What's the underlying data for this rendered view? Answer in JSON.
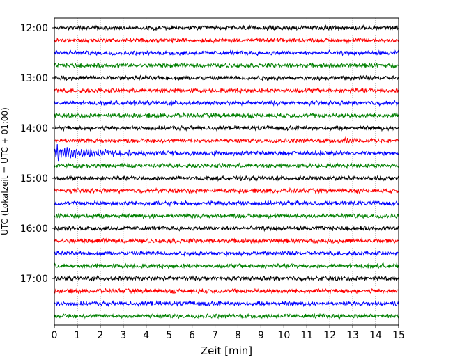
{
  "chart_data": {
    "type": "line",
    "title": "",
    "xlabel": "Zeit  [min]",
    "ylabel": "UTC (Lokalzeit = UTC + 01:00)",
    "xlim": [
      0,
      15
    ],
    "x_ticks": [
      "0",
      "1",
      "2",
      "3",
      "4",
      "5",
      "6",
      "7",
      "8",
      "9",
      "10",
      "11",
      "12",
      "13",
      "14",
      "15"
    ],
    "y_ticks": [
      "12:00",
      "13:00",
      "14:00",
      "15:00",
      "16:00",
      "17:00"
    ],
    "trace_interval_min": 15,
    "trace_colors": [
      "#000000",
      "#ff0000",
      "#0000ff",
      "#008000"
    ],
    "grid": "vertical dotted at each minute",
    "traces": [
      {
        "start": "12:00",
        "color": "#000000"
      },
      {
        "start": "12:15",
        "color": "#ff0000"
      },
      {
        "start": "12:30",
        "color": "#0000ff"
      },
      {
        "start": "12:45",
        "color": "#008000"
      },
      {
        "start": "13:00",
        "color": "#000000"
      },
      {
        "start": "13:15",
        "color": "#ff0000"
      },
      {
        "start": "13:30",
        "color": "#0000ff"
      },
      {
        "start": "13:45",
        "color": "#008000"
      },
      {
        "start": "14:00",
        "color": "#000000"
      },
      {
        "start": "14:15",
        "color": "#ff0000",
        "event": {
          "onset_min": 12.65,
          "peak": 0.7,
          "decay_min": 0.5
        }
      },
      {
        "start": "14:30",
        "color": "#0000ff",
        "event": {
          "onset_min": 0.0,
          "peak": 1.6,
          "decay_min": 1.6
        }
      },
      {
        "start": "14:45",
        "color": "#008000"
      },
      {
        "start": "15:00",
        "color": "#000000"
      },
      {
        "start": "15:15",
        "color": "#ff0000"
      },
      {
        "start": "15:30",
        "color": "#0000ff"
      },
      {
        "start": "15:45",
        "color": "#008000"
      },
      {
        "start": "16:00",
        "color": "#000000"
      },
      {
        "start": "16:15",
        "color": "#ff0000"
      },
      {
        "start": "16:30",
        "color": "#0000ff"
      },
      {
        "start": "16:45",
        "color": "#008000"
      },
      {
        "start": "17:00",
        "color": "#000000"
      },
      {
        "start": "17:15",
        "color": "#ff0000"
      },
      {
        "start": "17:30",
        "color": "#0000ff"
      },
      {
        "start": "17:45",
        "color": "#008000"
      }
    ]
  }
}
